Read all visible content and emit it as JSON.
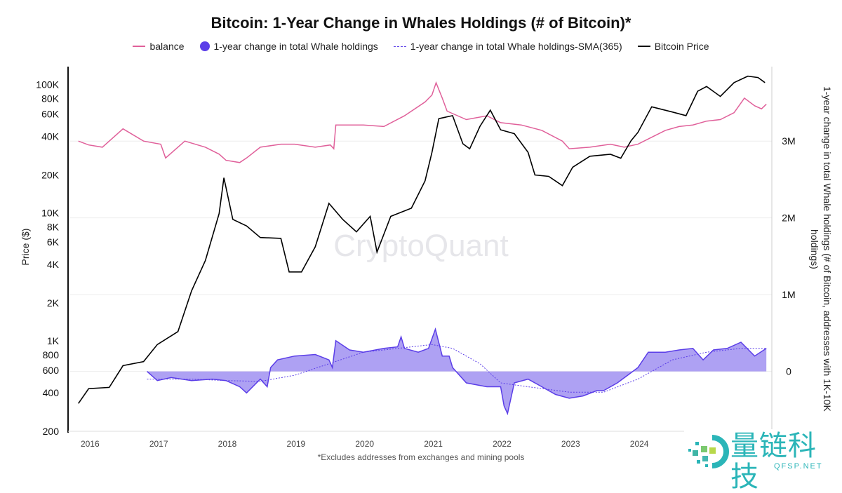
{
  "chart_data": {
    "type": "line",
    "title": "Bitcoin: 1-Year Change in Whales Holdings (# of Bitcoin)*",
    "footnote": "*Excludes addresses from exchanges and mining pools",
    "watermark": "CryptoQuant",
    "y_left": {
      "label": "Price ($)",
      "scale": "log",
      "range": [
        200,
        140000
      ],
      "ticks": [
        {
          "v": 100000,
          "t": "100K"
        },
        {
          "v": 80000,
          "t": "80K"
        },
        {
          "v": 60000,
          "t": "60K"
        },
        {
          "v": 40000,
          "t": "40K"
        },
        {
          "v": 20000,
          "t": "20K"
        },
        {
          "v": 10000,
          "t": "10K"
        },
        {
          "v": 8000,
          "t": "8K"
        },
        {
          "v": 6000,
          "t": "6K"
        },
        {
          "v": 4000,
          "t": "4K"
        },
        {
          "v": 2000,
          "t": "2K"
        },
        {
          "v": 1000,
          "t": "1K"
        },
        {
          "v": 800,
          "t": "800"
        },
        {
          "v": 600,
          "t": "600"
        },
        {
          "v": 400,
          "t": "400"
        },
        {
          "v": 200,
          "t": "200"
        }
      ]
    },
    "y_right": {
      "label": "1-year change in total Whale holdings (# of Bitcoin, addresses with 1K-10K holdings)",
      "range": [
        -780000,
        3970000
      ],
      "ticks": [
        {
          "v": 3000000,
          "t": "3M"
        },
        {
          "v": 2000000,
          "t": "2M"
        },
        {
          "v": 1000000,
          "t": "1M"
        },
        {
          "v": 0,
          "t": "0"
        }
      ]
    },
    "x": {
      "range": [
        2015.7,
        2025.95
      ],
      "ticks": [
        2016,
        2017,
        2018,
        2019,
        2020,
        2021,
        2022,
        2023,
        2024
      ]
    },
    "grid": true,
    "legend_placement": "top",
    "series": [
      {
        "name": "balance",
        "color": "#e0609a",
        "axis": "right",
        "style": "line",
        "points": [
          [
            2015.85,
            3.0
          ],
          [
            2016.0,
            2.95
          ],
          [
            2016.2,
            2.92
          ],
          [
            2016.5,
            3.16
          ],
          [
            2016.8,
            3.0
          ],
          [
            2017.05,
            2.96
          ],
          [
            2017.12,
            2.78
          ],
          [
            2017.4,
            3.0
          ],
          [
            2017.7,
            2.92
          ],
          [
            2017.9,
            2.83
          ],
          [
            2018.0,
            2.75
          ],
          [
            2018.2,
            2.72
          ],
          [
            2018.3,
            2.78
          ],
          [
            2018.5,
            2.92
          ],
          [
            2018.8,
            2.96
          ],
          [
            2019.0,
            2.96
          ],
          [
            2019.3,
            2.92
          ],
          [
            2019.52,
            2.95
          ],
          [
            2019.57,
            2.9
          ],
          [
            2019.6,
            3.21
          ],
          [
            2020.0,
            3.21
          ],
          [
            2020.3,
            3.19
          ],
          [
            2020.6,
            3.33
          ],
          [
            2020.9,
            3.51
          ],
          [
            2021.0,
            3.6
          ],
          [
            2021.06,
            3.76
          ],
          [
            2021.15,
            3.56
          ],
          [
            2021.22,
            3.39
          ],
          [
            2021.5,
            3.28
          ],
          [
            2021.8,
            3.33
          ],
          [
            2022.0,
            3.24
          ],
          [
            2022.3,
            3.21
          ],
          [
            2022.6,
            3.14
          ],
          [
            2022.9,
            3.0
          ],
          [
            2023.0,
            2.9
          ],
          [
            2023.3,
            2.92
          ],
          [
            2023.6,
            2.96
          ],
          [
            2023.8,
            2.92
          ],
          [
            2024.0,
            2.96
          ],
          [
            2024.2,
            3.05
          ],
          [
            2024.4,
            3.14
          ],
          [
            2024.6,
            3.19
          ],
          [
            2024.8,
            3.21
          ],
          [
            2025.0,
            3.26
          ],
          [
            2025.2,
            3.28
          ],
          [
            2025.4,
            3.37
          ],
          [
            2025.55,
            3.56
          ],
          [
            2025.7,
            3.46
          ],
          [
            2025.8,
            3.42
          ],
          [
            2025.87,
            3.48
          ]
        ]
      },
      {
        "name": "1-year change in total Whale holdings",
        "color": "#5b3ee8",
        "fill": "#a597f2",
        "axis": "right",
        "style": "area",
        "points": [
          [
            2016.85,
            0
          ],
          [
            2017.0,
            -0.12
          ],
          [
            2017.2,
            -0.08
          ],
          [
            2017.5,
            -0.12
          ],
          [
            2017.8,
            -0.1
          ],
          [
            2018.0,
            -0.12
          ],
          [
            2018.2,
            -0.2
          ],
          [
            2018.3,
            -0.28
          ],
          [
            2018.5,
            -0.1
          ],
          [
            2018.6,
            -0.2
          ],
          [
            2018.65,
            0.05
          ],
          [
            2018.75,
            0.15
          ],
          [
            2019.0,
            0.2
          ],
          [
            2019.3,
            0.22
          ],
          [
            2019.5,
            0.15
          ],
          [
            2019.55,
            0.05
          ],
          [
            2019.6,
            0.4
          ],
          [
            2019.8,
            0.28
          ],
          [
            2020.0,
            0.25
          ],
          [
            2020.3,
            0.3
          ],
          [
            2020.5,
            0.32
          ],
          [
            2020.55,
            0.45
          ],
          [
            2020.6,
            0.3
          ],
          [
            2020.8,
            0.25
          ],
          [
            2020.95,
            0.3
          ],
          [
            2021.05,
            0.55
          ],
          [
            2021.15,
            0.2
          ],
          [
            2021.25,
            0.2
          ],
          [
            2021.3,
            0.05
          ],
          [
            2021.5,
            -0.15
          ],
          [
            2021.8,
            -0.2
          ],
          [
            2022.0,
            -0.2
          ],
          [
            2022.05,
            -0.45
          ],
          [
            2022.1,
            -0.55
          ],
          [
            2022.2,
            -0.15
          ],
          [
            2022.4,
            -0.1
          ],
          [
            2022.6,
            -0.2
          ],
          [
            2022.8,
            -0.3
          ],
          [
            2023.0,
            -0.35
          ],
          [
            2023.2,
            -0.32
          ],
          [
            2023.4,
            -0.25
          ],
          [
            2023.5,
            -0.25
          ],
          [
            2023.7,
            -0.15
          ],
          [
            2023.85,
            -0.05
          ],
          [
            2024.0,
            0.05
          ],
          [
            2024.15,
            0.25
          ],
          [
            2024.4,
            0.25
          ],
          [
            2024.6,
            0.28
          ],
          [
            2024.8,
            0.3
          ],
          [
            2024.95,
            0.15
          ],
          [
            2025.1,
            0.28
          ],
          [
            2025.3,
            0.3
          ],
          [
            2025.5,
            0.38
          ],
          [
            2025.7,
            0.2
          ],
          [
            2025.87,
            0.3
          ]
        ]
      },
      {
        "name": "1-year change in total Whale holdings-SMA(365)",
        "color": "#5b3ee8",
        "axis": "right",
        "style": "dashed",
        "points": [
          [
            2016.85,
            -0.1
          ],
          [
            2017.5,
            -0.1
          ],
          [
            2018.0,
            -0.12
          ],
          [
            2018.5,
            -0.13
          ],
          [
            2019.0,
            -0.05
          ],
          [
            2019.5,
            0.1
          ],
          [
            2020.0,
            0.25
          ],
          [
            2020.5,
            0.3
          ],
          [
            2021.0,
            0.35
          ],
          [
            2021.3,
            0.3
          ],
          [
            2021.7,
            0.1
          ],
          [
            2022.0,
            -0.15
          ],
          [
            2022.4,
            -0.2
          ],
          [
            2023.0,
            -0.27
          ],
          [
            2023.5,
            -0.27
          ],
          [
            2024.0,
            -0.1
          ],
          [
            2024.5,
            0.15
          ],
          [
            2025.0,
            0.25
          ],
          [
            2025.5,
            0.3
          ],
          [
            2025.87,
            0.3
          ]
        ]
      },
      {
        "name": "Bitcoin Price",
        "color": "#000000",
        "axis": "left",
        "style": "line",
        "points": [
          [
            2015.85,
            330
          ],
          [
            2016.0,
            430
          ],
          [
            2016.3,
            440
          ],
          [
            2016.5,
            650
          ],
          [
            2016.8,
            700
          ],
          [
            2017.0,
            950
          ],
          [
            2017.3,
            1200
          ],
          [
            2017.5,
            2500
          ],
          [
            2017.7,
            4300
          ],
          [
            2017.9,
            10000
          ],
          [
            2017.97,
            19000
          ],
          [
            2018.1,
            9000
          ],
          [
            2018.3,
            8000
          ],
          [
            2018.5,
            6500
          ],
          [
            2018.8,
            6400
          ],
          [
            2018.92,
            3500
          ],
          [
            2019.1,
            3500
          ],
          [
            2019.3,
            5500
          ],
          [
            2019.5,
            12000
          ],
          [
            2019.7,
            9000
          ],
          [
            2019.9,
            7200
          ],
          [
            2020.1,
            9500
          ],
          [
            2020.2,
            5000
          ],
          [
            2020.4,
            9500
          ],
          [
            2020.7,
            11000
          ],
          [
            2020.9,
            18000
          ],
          [
            2021.0,
            30000
          ],
          [
            2021.1,
            55000
          ],
          [
            2021.3,
            58000
          ],
          [
            2021.45,
            35000
          ],
          [
            2021.55,
            32000
          ],
          [
            2021.7,
            48000
          ],
          [
            2021.85,
            64000
          ],
          [
            2022.0,
            45000
          ],
          [
            2022.2,
            42000
          ],
          [
            2022.4,
            30000
          ],
          [
            2022.5,
            20000
          ],
          [
            2022.7,
            19500
          ],
          [
            2022.9,
            16500
          ],
          [
            2023.05,
            23000
          ],
          [
            2023.3,
            28000
          ],
          [
            2023.6,
            29000
          ],
          [
            2023.75,
            27000
          ],
          [
            2023.9,
            37000
          ],
          [
            2024.0,
            43000
          ],
          [
            2024.2,
            68000
          ],
          [
            2024.5,
            62000
          ],
          [
            2024.7,
            58000
          ],
          [
            2024.87,
            90000
          ],
          [
            2025.0,
            98000
          ],
          [
            2025.2,
            82000
          ],
          [
            2025.4,
            105000
          ],
          [
            2025.6,
            118000
          ],
          [
            2025.75,
            115000
          ],
          [
            2025.85,
            105000
          ]
        ]
      }
    ]
  },
  "logo": {
    "text_cn": "量链科技",
    "text_en": "QFSP.NET"
  }
}
